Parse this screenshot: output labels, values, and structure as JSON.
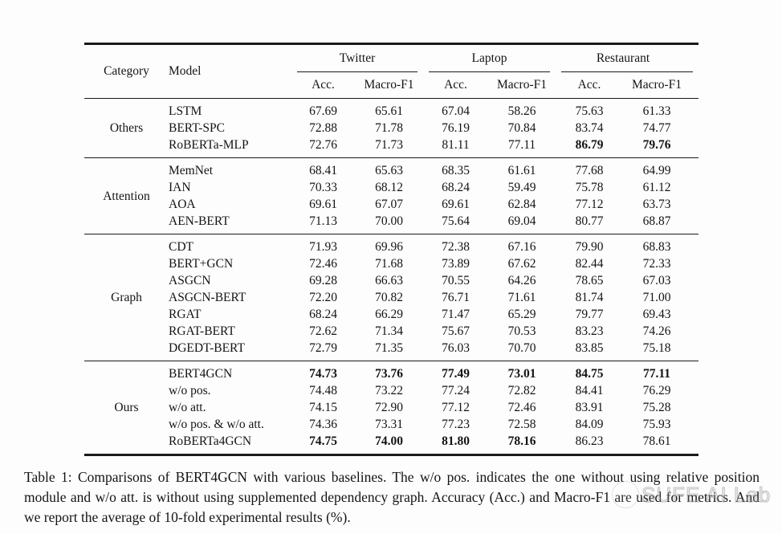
{
  "table": {
    "header": {
      "category": "Category",
      "model": "Model",
      "datasets": [
        "Twitter",
        "Laptop",
        "Restaurant"
      ],
      "metrics": [
        "Acc.",
        "Macro-F1"
      ]
    },
    "groups": [
      {
        "category": "Others",
        "rows": [
          {
            "model": "LSTM",
            "values": [
              "67.69",
              "65.61",
              "67.04",
              "58.26",
              "75.63",
              "61.33"
            ],
            "bold": [
              false,
              false,
              false,
              false,
              false,
              false
            ]
          },
          {
            "model": "BERT-SPC",
            "values": [
              "72.88",
              "71.78",
              "76.19",
              "70.84",
              "83.74",
              "74.77"
            ],
            "bold": [
              false,
              false,
              false,
              false,
              false,
              false
            ]
          },
          {
            "model": "RoBERTa-MLP",
            "values": [
              "72.76",
              "71.73",
              "81.11",
              "77.11",
              "86.79",
              "79.76"
            ],
            "bold": [
              false,
              false,
              false,
              false,
              true,
              true
            ]
          }
        ]
      },
      {
        "category": "Attention",
        "rows": [
          {
            "model": "MemNet",
            "values": [
              "68.41",
              "65.63",
              "68.35",
              "61.61",
              "77.68",
              "64.99"
            ],
            "bold": [
              false,
              false,
              false,
              false,
              false,
              false
            ]
          },
          {
            "model": "IAN",
            "values": [
              "70.33",
              "68.12",
              "68.24",
              "59.49",
              "75.78",
              "61.12"
            ],
            "bold": [
              false,
              false,
              false,
              false,
              false,
              false
            ]
          },
          {
            "model": "AOA",
            "values": [
              "69.61",
              "67.07",
              "69.61",
              "62.84",
              "77.12",
              "63.73"
            ],
            "bold": [
              false,
              false,
              false,
              false,
              false,
              false
            ]
          },
          {
            "model": "AEN-BERT",
            "values": [
              "71.13",
              "70.00",
              "75.64",
              "69.04",
              "80.77",
              "68.87"
            ],
            "bold": [
              false,
              false,
              false,
              false,
              false,
              false
            ]
          }
        ]
      },
      {
        "category": "Graph",
        "rows": [
          {
            "model": "CDT",
            "values": [
              "71.93",
              "69.96",
              "72.38",
              "67.16",
              "79.90",
              "68.83"
            ],
            "bold": [
              false,
              false,
              false,
              false,
              false,
              false
            ]
          },
          {
            "model": "BERT+GCN",
            "values": [
              "72.46",
              "71.68",
              "73.89",
              "67.62",
              "82.44",
              "72.33"
            ],
            "bold": [
              false,
              false,
              false,
              false,
              false,
              false
            ]
          },
          {
            "model": "ASGCN",
            "values": [
              "69.28",
              "66.63",
              "70.55",
              "64.26",
              "78.65",
              "67.03"
            ],
            "bold": [
              false,
              false,
              false,
              false,
              false,
              false
            ]
          },
          {
            "model": "ASGCN-BERT",
            "values": [
              "72.20",
              "70.82",
              "76.71",
              "71.61",
              "81.74",
              "71.00"
            ],
            "bold": [
              false,
              false,
              false,
              false,
              false,
              false
            ]
          },
          {
            "model": "RGAT",
            "values": [
              "68.24",
              "66.29",
              "71.47",
              "65.29",
              "79.77",
              "69.43"
            ],
            "bold": [
              false,
              false,
              false,
              false,
              false,
              false
            ]
          },
          {
            "model": "RGAT-BERT",
            "values": [
              "72.62",
              "71.34",
              "75.67",
              "70.53",
              "83.23",
              "74.26"
            ],
            "bold": [
              false,
              false,
              false,
              false,
              false,
              false
            ]
          },
          {
            "model": "DGEDT-BERT",
            "values": [
              "72.79",
              "71.35",
              "76.03",
              "70.70",
              "83.85",
              "75.18"
            ],
            "bold": [
              false,
              false,
              false,
              false,
              false,
              false
            ]
          }
        ]
      },
      {
        "category": "Ours",
        "rows": [
          {
            "model": "BERT4GCN",
            "values": [
              "74.73",
              "73.76",
              "77.49",
              "73.01",
              "84.75",
              "77.11"
            ],
            "bold": [
              true,
              true,
              true,
              true,
              true,
              true
            ]
          },
          {
            "model": "w/o pos.",
            "values": [
              "74.48",
              "73.22",
              "77.24",
              "72.82",
              "84.41",
              "76.29"
            ],
            "bold": [
              false,
              false,
              false,
              false,
              false,
              false
            ]
          },
          {
            "model": "w/o att.",
            "values": [
              "74.15",
              "72.90",
              "77.12",
              "72.46",
              "83.91",
              "75.28"
            ],
            "bold": [
              false,
              false,
              false,
              false,
              false,
              false
            ]
          },
          {
            "model": "w/o pos. & w/o att.",
            "values": [
              "74.36",
              "73.31",
              "77.23",
              "72.58",
              "84.09",
              "75.93"
            ],
            "bold": [
              false,
              false,
              false,
              false,
              false,
              false
            ]
          },
          {
            "model": "RoBERTa4GCN",
            "values": [
              "74.75",
              "74.00",
              "81.80",
              "78.16",
              "86.23",
              "78.61"
            ],
            "bold": [
              true,
              true,
              true,
              true,
              false,
              false
            ]
          }
        ]
      }
    ]
  },
  "caption": {
    "text": "Table 1: Comparisons of BERT4GCN with various baselines. The w/o pos. indicates the one without using relative position module and w/o att. is without using supplemented dependency graph. Accuracy (Acc.) and Macro-F1 are used for metrics. And we report the average of 10-fold experimental results (%)."
  },
  "watermark": {
    "text": "SUFE AI Lab"
  }
}
